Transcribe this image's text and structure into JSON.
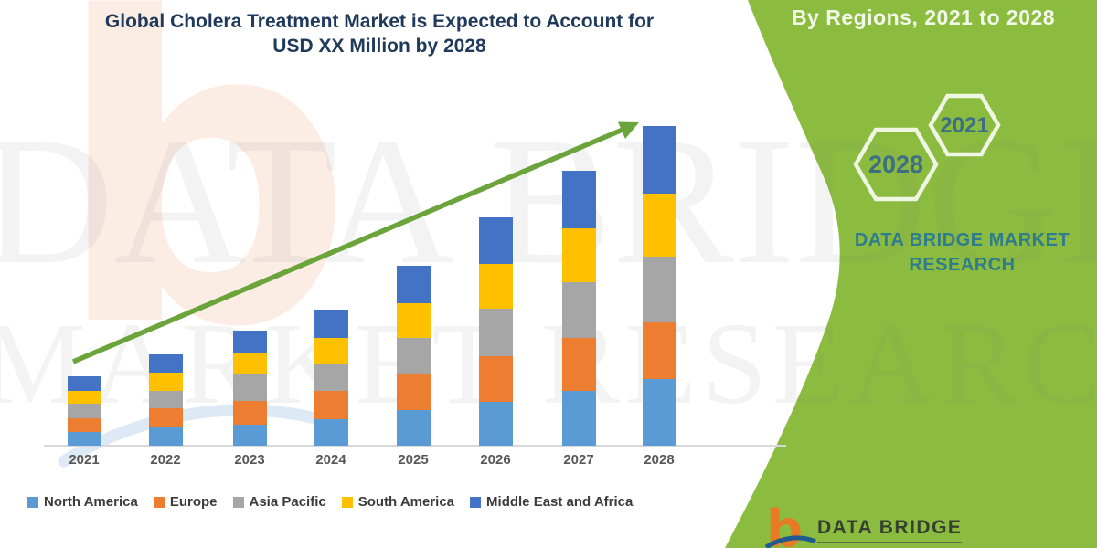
{
  "chart": {
    "title_line1": "Global Cholera Treatment Market is Expected to Account for",
    "title_line2": "USD XX Million by 2028",
    "watermark_line1": "DATA BRIDGE",
    "watermark_line2": "MARKET RESEARCH",
    "watermark_b": "b"
  },
  "chart_data": {
    "type": "bar",
    "stacked": true,
    "title": "Global Cholera Treatment Market is Expected to Account for USD XX Million by 2028",
    "xlabel": "",
    "ylabel": "",
    "categories": [
      "2021",
      "2022",
      "2023",
      "2024",
      "2025",
      "2026",
      "2027",
      "2028"
    ],
    "series": [
      {
        "name": "North America",
        "color": "#5B9BD5",
        "values": [
          15,
          21,
          23,
          29,
          39,
          48,
          60,
          73
        ]
      },
      {
        "name": "Europe",
        "color": "#ED7D31",
        "values": [
          15,
          20,
          26,
          31,
          40,
          50,
          58,
          62
        ]
      },
      {
        "name": "Asia Pacific",
        "color": "#A6A6A6",
        "values": [
          16,
          19,
          30,
          29,
          39,
          52,
          61,
          72
        ]
      },
      {
        "name": "South America",
        "color": "#FFC000",
        "values": [
          14,
          20,
          22,
          29,
          38,
          49,
          59,
          69
        ]
      },
      {
        "name": "Middle East and Africa",
        "color": "#4472C4",
        "values": [
          16,
          20,
          25,
          31,
          41,
          51,
          63,
          74
        ]
      }
    ],
    "value_note": "No y-axis shown; values are relative estimates from bar heights (actual figures displayed as 'USD XX Million')",
    "gridlines": false,
    "legend_position": "bottom",
    "trend_arrow": {
      "present": true,
      "color": "#6BA43B"
    }
  },
  "side_panel": {
    "bg_color": "#8CBC3F",
    "heading": "By Regions, 2021 to 2028",
    "hexagons": [
      {
        "label": "2028"
      },
      {
        "label": "2021"
      }
    ],
    "brand_text": "DATA BRIDGE MARKET RESEARCH"
  },
  "footer_logo": {
    "b_glyph": "b",
    "brand": "DATA BRIDGE"
  },
  "colors": {
    "panel_green": "#8CBC3F",
    "arrow_green": "#6BA43B",
    "title_navy": "#203A5C",
    "brand_teal": "#2F7C8D",
    "logo_orange": "#E87A25"
  }
}
